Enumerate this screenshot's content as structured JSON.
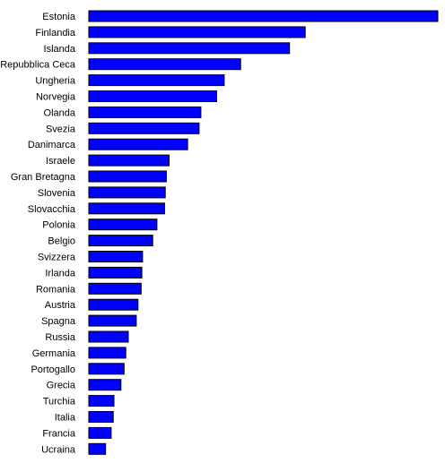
{
  "chart_data": {
    "type": "bar",
    "orientation": "horizontal",
    "title": "",
    "xlabel": "",
    "ylabel": "",
    "grid": false,
    "legend": "none",
    "bar_color": "#0000FF",
    "bar_edge_color": "#000000",
    "xlim": [
      0,
      100
    ],
    "categories": [
      "Estonia",
      "Finlandia",
      "Islanda",
      "Repubblica Ceca",
      "Ungheria",
      "Norvegia",
      "Olanda",
      "Svezia",
      "Danimarca",
      "Israele",
      "Gran Bretagna",
      "Slovenia",
      "Slovacchia",
      "Polonia",
      "Belgio",
      "Svizzera",
      "Irlanda",
      "Romania",
      "Austria",
      "Spagna",
      "Russia",
      "Germania",
      "Portogallo",
      "Grecia",
      "Turchia",
      "Italia",
      "Francia",
      "Ucraina"
    ],
    "values": [
      100,
      62,
      57.5,
      43.5,
      38.8,
      36.6,
      32.1,
      31.6,
      28.3,
      23,
      22.2,
      21.9,
      21.7,
      19.5,
      18.3,
      15.4,
      15.2,
      15,
      14.1,
      13.6,
      11.3,
      10.6,
      10.1,
      9.2,
      7.2,
      7,
      6.4,
      4.8
    ]
  }
}
